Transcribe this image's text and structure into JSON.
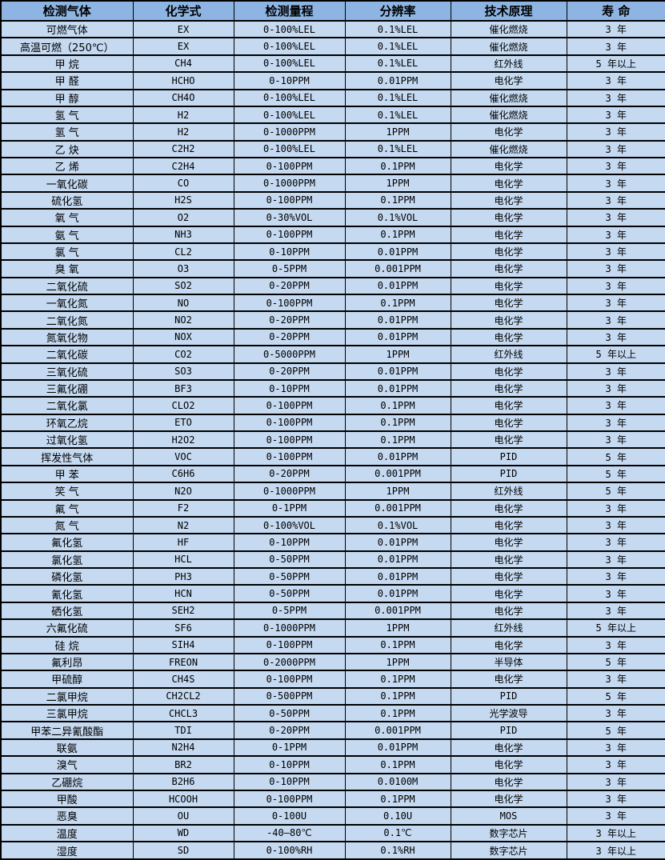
{
  "colors": {
    "header_background": "#8DB4E2",
    "row_background": "#C5D9F1",
    "grid_border": "#000000",
    "text": "#000000"
  },
  "table": {
    "columns": [
      "检测气体",
      "化学式",
      "检测量程",
      "分辨率",
      "技术原理",
      "寿 命"
    ],
    "column_keys": [
      "gas",
      "formula",
      "range",
      "resolution",
      "principle",
      "lifespan"
    ],
    "rows": [
      [
        "可燃气体",
        "EX",
        "0-100%LEL",
        "0.1%LEL",
        "催化燃烧",
        "3 年"
      ],
      [
        "高温可燃（250℃）",
        "EX",
        "0-100%LEL",
        "0.1%LEL",
        "催化燃烧",
        "3 年"
      ],
      [
        "甲 烷",
        "CH4",
        "0-100%LEL",
        "0.1%LEL",
        "红外线",
        "5 年以上"
      ],
      [
        "甲 醛",
        "HCHO",
        "0-10PPM",
        "0.01PPM",
        "电化学",
        "3 年"
      ],
      [
        "甲 醇",
        "CH4O",
        "0-100%LEL",
        "0.1%LEL",
        "催化燃烧",
        "3 年"
      ],
      [
        "氢 气",
        "H2",
        "0-100%LEL",
        "0.1%LEL",
        "催化燃烧",
        "3 年"
      ],
      [
        "氢 气",
        "H2",
        "0-1000PPM",
        "1PPM",
        "电化学",
        "3 年"
      ],
      [
        "乙 炔",
        "C2H2",
        "0-100%LEL",
        "0.1%LEL",
        "催化燃烧",
        "3 年"
      ],
      [
        "乙 烯",
        "C2H4",
        "0-100PPM",
        "0.1PPM",
        "电化学",
        "3 年"
      ],
      [
        "一氧化碳",
        "CO",
        "0-1000PPM",
        "1PPM",
        "电化学",
        "3 年"
      ],
      [
        "硫化氢",
        "H2S",
        "0-100PPM",
        "0.1PPM",
        "电化学",
        "3 年"
      ],
      [
        "氧 气",
        "O2",
        "0-30%VOL",
        "0.1%VOL",
        "电化学",
        "3 年"
      ],
      [
        "氨 气",
        "NH3",
        "0-100PPM",
        "0.1PPM",
        "电化学",
        "3 年"
      ],
      [
        "氯 气",
        "CL2",
        "0-10PPM",
        "0.01PPM",
        "电化学",
        "3 年"
      ],
      [
        "臭 氧",
        "O3",
        "0-5PPM",
        "0.001PPM",
        "电化学",
        "3 年"
      ],
      [
        "二氧化硫",
        "SO2",
        "0-20PPM",
        "0.01PPM",
        "电化学",
        "3 年"
      ],
      [
        "一氧化氮",
        "NO",
        "0-100PPM",
        "0.1PPM",
        "电化学",
        "3 年"
      ],
      [
        "二氧化氮",
        "NO2",
        "0-20PPM",
        "0.01PPM",
        "电化学",
        "3 年"
      ],
      [
        "氮氧化物",
        "NOX",
        "0-20PPM",
        "0.01PPM",
        "电化学",
        "3 年"
      ],
      [
        "二氧化碳",
        "CO2",
        "0-5000PPM",
        "1PPM",
        "红外线",
        "5 年以上"
      ],
      [
        "三氧化硫",
        "SO3",
        "0-20PPM",
        "0.01PPM",
        "电化学",
        "3 年"
      ],
      [
        "三氟化硼",
        "BF3",
        "0-10PPM",
        "0.01PPM",
        "电化学",
        "3 年"
      ],
      [
        "二氧化氯",
        "CLO2",
        "0-100PPM",
        "0.1PPM",
        "电化学",
        "3 年"
      ],
      [
        "环氧乙烷",
        "ETO",
        "0-100PPM",
        "0.1PPM",
        "电化学",
        "3 年"
      ],
      [
        "过氧化氢",
        "H2O2",
        "0-100PPM",
        "0.1PPM",
        "电化学",
        "3 年"
      ],
      [
        "挥发性气体",
        "VOC",
        "0-100PPM",
        "0.01PPM",
        "PID",
        "5 年"
      ],
      [
        "甲 苯",
        "C6H6",
        "0-20PPM",
        "0.001PPM",
        "PID",
        "5 年"
      ],
      [
        "笑 气",
        "N2O",
        "0-1000PPM",
        "1PPM",
        "红外线",
        "5 年"
      ],
      [
        "氟 气",
        "F2",
        "0-1PPM",
        "0.001PPM",
        "电化学",
        "3 年"
      ],
      [
        "氮 气",
        "N2",
        "0-100%VOL",
        "0.1%VOL",
        "电化学",
        "3 年"
      ],
      [
        "氟化氢",
        "HF",
        "0-10PPM",
        "0.01PPM",
        "电化学",
        "3 年"
      ],
      [
        "氯化氢",
        "HCL",
        "0-50PPM",
        "0.01PPM",
        "电化学",
        "3 年"
      ],
      [
        "磷化氢",
        "PH3",
        "0-50PPM",
        "0.01PPM",
        "电化学",
        "3 年"
      ],
      [
        "氰化氢",
        "HCN",
        "0-50PPM",
        "0.01PPM",
        "电化学",
        "3 年"
      ],
      [
        "硒化氢",
        "SEH2",
        "0-5PPM",
        "0.001PPM",
        "电化学",
        "3 年"
      ],
      [
        "六氟化硫",
        "SF6",
        "0-1000PPM",
        "1PPM",
        "红外线",
        "5 年以上"
      ],
      [
        "硅 烷",
        "SIH4",
        "0-100PPM",
        "0.1PPM",
        "电化学",
        "3 年"
      ],
      [
        "氟利昂",
        "FREON",
        "0-2000PPM",
        "1PPM",
        "半导体",
        "5 年"
      ],
      [
        "甲硫醇",
        "CH4S",
        "0-100PPM",
        "0.1PPM",
        "电化学",
        "3 年"
      ],
      [
        "二氯甲烷",
        "CH2CL2",
        "0-500PPM",
        "0.1PPM",
        "PID",
        "5 年"
      ],
      [
        "三氯甲烷",
        "CHCL3",
        "0-50PPM",
        "0.1PPM",
        "光学波导",
        "3 年"
      ],
      [
        "甲苯二异氰酸酯",
        "TDI",
        "0-20PPM",
        "0.001PPM",
        "PID",
        "5 年"
      ],
      [
        "联氨",
        "N2H4",
        "0-1PPM",
        "0.01PPM",
        "电化学",
        "3 年"
      ],
      [
        "溴气",
        "BR2",
        "0-10PPM",
        "0.1PPM",
        "电化学",
        "3 年"
      ],
      [
        "乙硼烷",
        "B2H6",
        "0-10PPM",
        "0.0100M",
        "电化学",
        "3 年"
      ],
      [
        "甲酸",
        "HCOOH",
        "0-100PPM",
        "0.1PPM",
        "电化学",
        "3 年"
      ],
      [
        "恶臭",
        "OU",
        "0-100U",
        "0.10U",
        "MOS",
        "3 年"
      ],
      [
        "温度",
        "WD",
        "-40—80℃",
        "0.1℃",
        "数字芯片",
        "3 年以上"
      ],
      [
        "湿度",
        "SD",
        "0-100%RH",
        "0.1%RH",
        "数字芯片",
        "3 年以上"
      ]
    ]
  }
}
